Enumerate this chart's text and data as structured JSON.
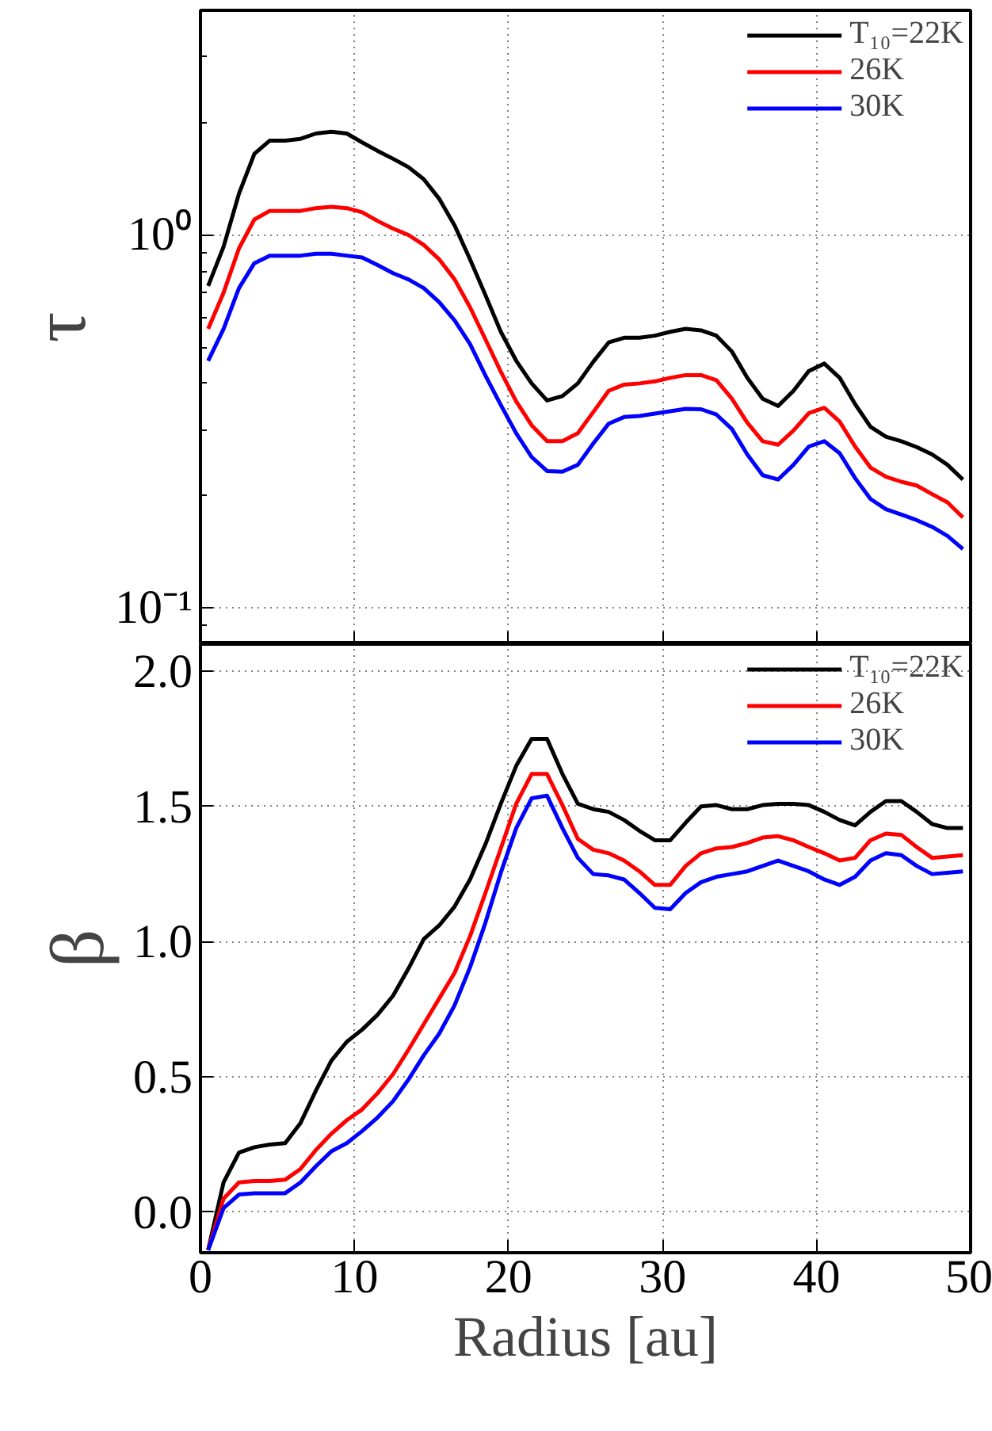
{
  "chart_data": [
    {
      "type": "line",
      "ylabel": "τ",
      "log": true,
      "grid": true,
      "legend": "top right",
      "tick_labels": "y",
      "xlim": [
        0,
        50
      ],
      "xticks": [
        0,
        10,
        20,
        30,
        40,
        50
      ],
      "ylim": [
        0.08,
        4
      ],
      "yticks": [
        {
          "value": 0.1,
          "label": "10⁻¹"
        },
        {
          "value": 1,
          "label": "10⁰"
        }
      ],
      "x": [
        0.5,
        1.5,
        2.5,
        3.5,
        4.5,
        5.5,
        6.5,
        7.5,
        8.5,
        9.5,
        10.5,
        11.5,
        12.5,
        13.5,
        14.5,
        15.5,
        16.5,
        17.5,
        18.5,
        19.5,
        20.5,
        21.5,
        22.5,
        23.5,
        24.5,
        25.5,
        26.5,
        27.5,
        28.5,
        29.5,
        30.5,
        31.5,
        32.5,
        33.5,
        34.5,
        35.5,
        36.5,
        37.5,
        38.5,
        39.5,
        40.5,
        41.5,
        42.5,
        43.5,
        44.5,
        45.5,
        46.5,
        47.5,
        48.5,
        49.5
      ],
      "series": [
        {
          "name": "T₁₀=22K",
          "color": "#000000",
          "values": [
            0.73,
            0.93,
            1.29,
            1.65,
            1.79,
            1.79,
            1.81,
            1.87,
            1.89,
            1.87,
            1.77,
            1.68,
            1.6,
            1.52,
            1.41,
            1.25,
            1.06,
            0.86,
            0.69,
            0.55,
            0.46,
            0.4,
            0.36,
            0.37,
            0.4,
            0.457,
            0.515,
            0.53,
            0.53,
            0.537,
            0.55,
            0.56,
            0.555,
            0.537,
            0.487,
            0.414,
            0.364,
            0.348,
            0.382,
            0.432,
            0.452,
            0.414,
            0.352,
            0.306,
            0.288,
            0.28,
            0.27,
            0.258,
            0.242,
            0.221
          ]
        },
        {
          "name": "26K",
          "color": "#ff0000",
          "values": [
            0.56,
            0.7,
            0.92,
            1.1,
            1.16,
            1.16,
            1.16,
            1.18,
            1.19,
            1.18,
            1.15,
            1.09,
            1.04,
            1.0,
            0.94,
            0.86,
            0.76,
            0.64,
            0.525,
            0.43,
            0.358,
            0.309,
            0.28,
            0.28,
            0.294,
            0.335,
            0.382,
            0.397,
            0.4,
            0.405,
            0.414,
            0.421,
            0.421,
            0.408,
            0.364,
            0.314,
            0.28,
            0.274,
            0.299,
            0.333,
            0.344,
            0.316,
            0.271,
            0.238,
            0.225,
            0.218,
            0.213,
            0.202,
            0.192,
            0.175
          ]
        },
        {
          "name": "30K",
          "color": "#0000ff",
          "values": [
            0.46,
            0.56,
            0.72,
            0.84,
            0.88,
            0.88,
            0.88,
            0.89,
            0.89,
            0.88,
            0.87,
            0.83,
            0.79,
            0.76,
            0.72,
            0.66,
            0.59,
            0.51,
            0.42,
            0.35,
            0.294,
            0.254,
            0.233,
            0.232,
            0.242,
            0.276,
            0.312,
            0.325,
            0.327,
            0.332,
            0.337,
            0.342,
            0.341,
            0.33,
            0.302,
            0.258,
            0.227,
            0.221,
            0.242,
            0.271,
            0.28,
            0.26,
            0.223,
            0.196,
            0.184,
            0.178,
            0.172,
            0.165,
            0.156,
            0.144
          ]
        }
      ]
    },
    {
      "type": "line",
      "ylabel": "β",
      "xlabel": "Radius [au]",
      "grid": true,
      "legend": "top right",
      "xlim": [
        0,
        50
      ],
      "xticks": [
        0,
        10,
        20,
        30,
        40,
        50
      ],
      "ylim": [
        -0.15,
        2.1
      ],
      "yticks": [
        {
          "value": 0,
          "label": "0.0"
        },
        {
          "value": 0.5,
          "label": "0.5"
        },
        {
          "value": 1,
          "label": "1.0"
        },
        {
          "value": 1.5,
          "label": "1.5"
        },
        {
          "value": 2,
          "label": "2.0"
        }
      ],
      "x": [
        0.5,
        1.5,
        2.5,
        3.5,
        4.5,
        5.5,
        6.5,
        7.5,
        8.5,
        9.5,
        10.5,
        11.5,
        12.5,
        13.5,
        14.5,
        15.5,
        16.5,
        17.5,
        18.5,
        19.5,
        20.5,
        21.5,
        22.5,
        23.5,
        24.5,
        25.5,
        26.5,
        27.5,
        28.5,
        29.5,
        30.5,
        31.5,
        32.5,
        33.5,
        34.5,
        35.5,
        36.5,
        37.5,
        38.5,
        39.5,
        40.5,
        41.5,
        42.5,
        43.5,
        44.5,
        45.5,
        46.5,
        47.5,
        48.5,
        49.5
      ],
      "series": [
        {
          "name": "T₁₀=22K",
          "color": "#000000",
          "values": [
            -0.14,
            0.11,
            0.22,
            0.24,
            0.25,
            0.255,
            0.33,
            0.45,
            0.56,
            0.63,
            0.675,
            0.73,
            0.8,
            0.9,
            1.01,
            1.06,
            1.13,
            1.23,
            1.36,
            1.51,
            1.65,
            1.75,
            1.75,
            1.62,
            1.51,
            1.49,
            1.48,
            1.45,
            1.41,
            1.375,
            1.375,
            1.44,
            1.5,
            1.505,
            1.49,
            1.49,
            1.505,
            1.51,
            1.51,
            1.505,
            1.48,
            1.45,
            1.43,
            1.48,
            1.52,
            1.52,
            1.48,
            1.435,
            1.42,
            1.42
          ]
        },
        {
          "name": "26K",
          "color": "#ff0000",
          "values": [
            -0.14,
            0.05,
            0.11,
            0.115,
            0.115,
            0.12,
            0.16,
            0.23,
            0.29,
            0.34,
            0.38,
            0.44,
            0.51,
            0.6,
            0.695,
            0.79,
            0.885,
            1.02,
            1.18,
            1.345,
            1.51,
            1.62,
            1.62,
            1.505,
            1.38,
            1.34,
            1.327,
            1.3,
            1.26,
            1.21,
            1.21,
            1.28,
            1.327,
            1.345,
            1.35,
            1.365,
            1.385,
            1.39,
            1.375,
            1.35,
            1.327,
            1.3,
            1.31,
            1.375,
            1.4,
            1.395,
            1.35,
            1.31,
            1.315,
            1.32
          ]
        },
        {
          "name": "30K",
          "color": "#0000ff",
          "values": [
            -0.14,
            0.015,
            0.065,
            0.07,
            0.07,
            0.07,
            0.11,
            0.17,
            0.225,
            0.255,
            0.3,
            0.35,
            0.41,
            0.49,
            0.58,
            0.66,
            0.765,
            0.905,
            1.07,
            1.255,
            1.42,
            1.53,
            1.54,
            1.42,
            1.31,
            1.25,
            1.245,
            1.23,
            1.18,
            1.125,
            1.12,
            1.18,
            1.22,
            1.24,
            1.25,
            1.26,
            1.28,
            1.3,
            1.28,
            1.26,
            1.23,
            1.21,
            1.24,
            1.3,
            1.327,
            1.32,
            1.28,
            1.25,
            1.255,
            1.26
          ]
        }
      ]
    }
  ]
}
